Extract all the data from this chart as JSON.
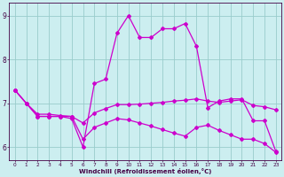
{
  "xlabel": "Windchill (Refroidissement éolien,°C)",
  "background_color": "#cceef0",
  "line_color": "#cc00cc",
  "grid_color": "#99cccc",
  "xlim": [
    -0.5,
    23.5
  ],
  "ylim": [
    5.7,
    9.3
  ],
  "yticks": [
    6,
    7,
    8,
    9
  ],
  "xticks": [
    0,
    1,
    2,
    3,
    4,
    5,
    6,
    7,
    8,
    9,
    10,
    11,
    12,
    13,
    14,
    15,
    16,
    17,
    18,
    19,
    20,
    21,
    22,
    23
  ],
  "line1_x": [
    0,
    1,
    2,
    3,
    4,
    5,
    6,
    7,
    8,
    9,
    10,
    11,
    12,
    13,
    14,
    15,
    16,
    17,
    18,
    19,
    20,
    21,
    22,
    23
  ],
  "line1_y": [
    7.3,
    7.0,
    6.7,
    6.7,
    6.7,
    6.65,
    6.0,
    7.45,
    7.55,
    8.6,
    9.0,
    8.5,
    8.5,
    8.7,
    8.7,
    8.82,
    8.3,
    6.9,
    7.05,
    7.1,
    7.1,
    6.6,
    6.6,
    5.9
  ],
  "line2_x": [
    0,
    1,
    2,
    3,
    4,
    5,
    6,
    7,
    8,
    9,
    10,
    11,
    12,
    13,
    14,
    15,
    16,
    17,
    18,
    19,
    20,
    21,
    22,
    23
  ],
  "line2_y": [
    7.3,
    7.0,
    6.7,
    6.7,
    6.7,
    6.7,
    6.55,
    6.78,
    6.88,
    6.97,
    6.97,
    6.98,
    7.0,
    7.02,
    7.05,
    7.07,
    7.1,
    7.05,
    7.02,
    7.05,
    7.08,
    6.95,
    6.92,
    6.85
  ],
  "line3_x": [
    0,
    1,
    2,
    3,
    4,
    5,
    6,
    7,
    8,
    9,
    10,
    11,
    12,
    13,
    14,
    15,
    16,
    17,
    18,
    19,
    20,
    21,
    22,
    23
  ],
  "line3_y": [
    7.3,
    7.0,
    6.75,
    6.75,
    6.72,
    6.7,
    6.18,
    6.45,
    6.55,
    6.65,
    6.62,
    6.55,
    6.48,
    6.4,
    6.32,
    6.25,
    6.45,
    6.5,
    6.38,
    6.28,
    6.18,
    6.18,
    6.08,
    5.88
  ]
}
